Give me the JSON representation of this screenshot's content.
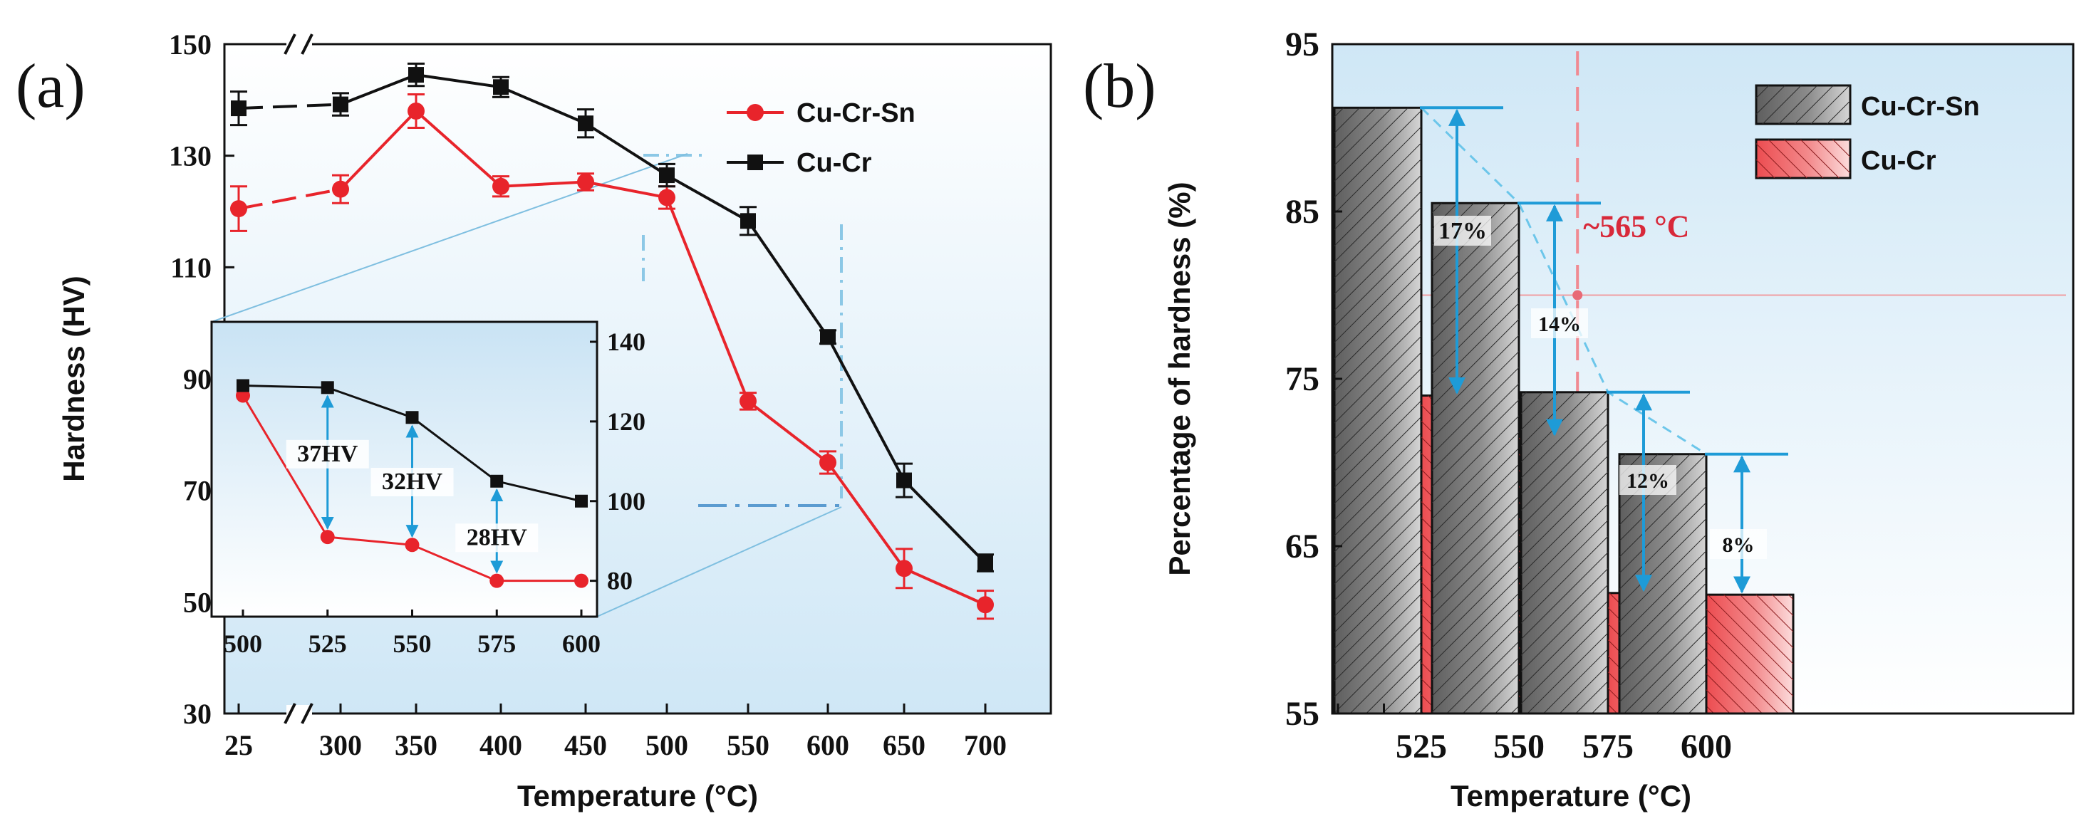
{
  "chart_data": [
    {
      "type": "line",
      "panel_label": "(a)",
      "xlabel": "Temperature (°C)",
      "ylabel": "Hardness (HV)",
      "ylim": [
        30,
        150
      ],
      "y_ticks": [
        "30",
        "50",
        "70",
        "90",
        "110",
        "130",
        "150"
      ],
      "categories": [
        "25",
        "300",
        "350",
        "400",
        "450",
        "500",
        "550",
        "600",
        "650",
        "700"
      ],
      "series": [
        {
          "name": "Cu-Cr-Sn",
          "color": "#e8242b",
          "marker": "circle",
          "values": [
            120.5,
            124,
            138,
            124.5,
            125.3,
            122.5,
            86,
            75,
            56,
            49.5
          ],
          "errors": [
            4.0,
            2.5,
            3.0,
            1.8,
            1.5,
            2.0,
            1.5,
            2.0,
            3.5,
            2.5
          ]
        },
        {
          "name": "Cu-Cr",
          "color": "#111111",
          "marker": "square",
          "values": [
            138.5,
            139.2,
            144.5,
            142.3,
            135.8,
            126.5,
            118.3,
            97.5,
            71.8,
            57
          ],
          "errors": [
            3.0,
            2.0,
            2.0,
            1.8,
            2.5,
            2.0,
            2.5,
            1.2,
            3.0,
            1.5
          ]
        }
      ],
      "inset": {
        "x_ticks": [
          "500",
          "525",
          "550",
          "575",
          "600"
        ],
        "y_ticks": [
          "80",
          "100",
          "120",
          "140"
        ],
        "ylim": [
          71,
          145
        ],
        "series": [
          {
            "name": "Cu-Cr-Sn",
            "values": [
              126.5,
              91,
              89,
              80,
              80
            ]
          },
          {
            "name": "Cu-Cr",
            "values": [
              129,
              128.5,
              121,
              105,
              100
            ]
          }
        ],
        "annotations": [
          "37HV",
          "32HV",
          "28HV"
        ]
      }
    },
    {
      "type": "bar",
      "panel_label": "(b)",
      "xlabel": "Temperature (°C)",
      "ylabel": "Percentage of hardness (%)",
      "ylim": [
        55,
        95
      ],
      "y_ticks": [
        "55",
        "65",
        "75",
        "85",
        "95"
      ],
      "categories": [
        "525",
        "550",
        "575",
        "600"
      ],
      "series": [
        {
          "name": "Cu-Cr-Sn",
          "color": "#7d7d7d",
          "values": [
            91.2,
            85.5,
            74.2,
            70.5
          ]
        },
        {
          "name": "Cu-Cr",
          "color": "#f06466",
          "values": [
            74,
            71.5,
            62.2,
            62.1
          ]
        }
      ],
      "differences": [
        "17%",
        "14%",
        "12%",
        "8%"
      ],
      "critical_temperature": {
        "label": "~565 °C",
        "x": 565,
        "y": 80
      }
    }
  ]
}
